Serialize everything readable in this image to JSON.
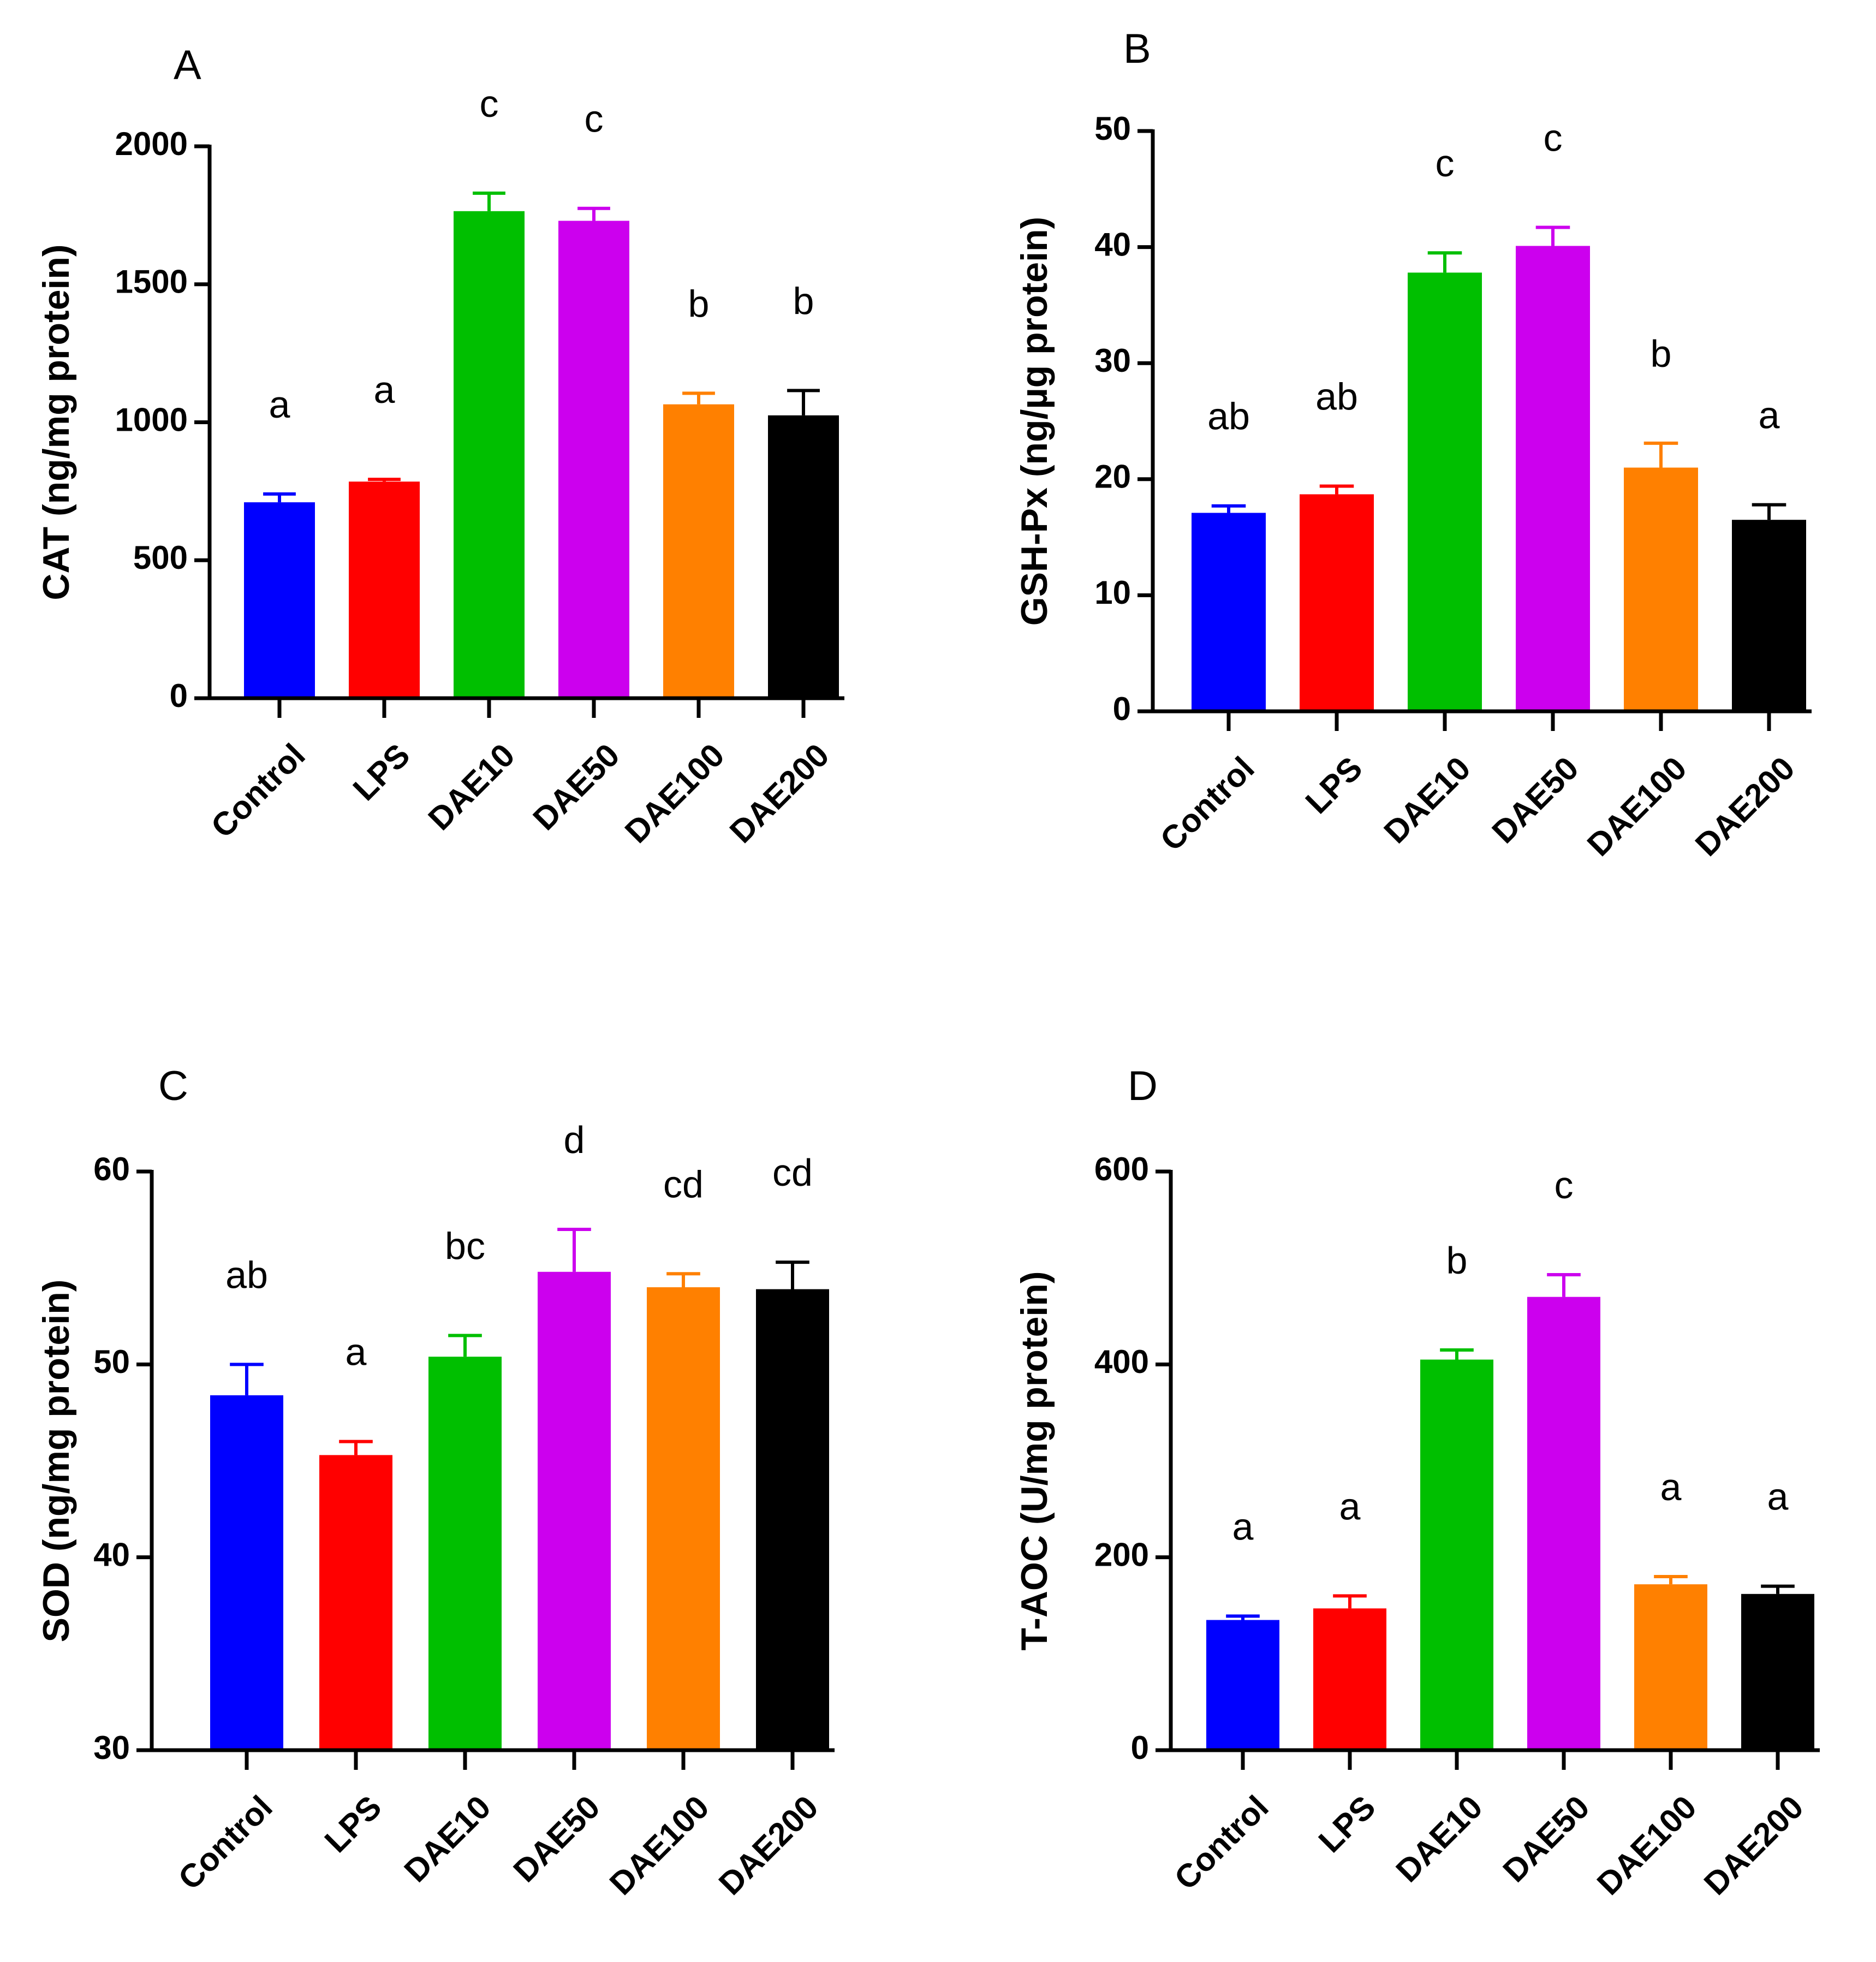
{
  "colors": {
    "Control": "#0000ff",
    "LPS": "#ff0000",
    "DAE10": "#00bf00",
    "DAE50": "#cc00ee",
    "DAE100": "#ff8000",
    "DAE200": "#000000"
  },
  "chart_data": [
    {
      "type": "bar",
      "panel": "A",
      "categories": [
        "Control",
        "LPS",
        "DAE10",
        "DAE50",
        "DAE100",
        "DAE200"
      ],
      "values": [
        710,
        785,
        1765,
        1730,
        1065,
        1025
      ],
      "errors": [
        30,
        8,
        65,
        45,
        40,
        90
      ],
      "significance": [
        "a",
        "a",
        "c",
        "c",
        "b",
        "b"
      ],
      "ylabel": "CAT (ng/mg protein)",
      "ylim": [
        0,
        2000
      ],
      "yticks": [
        0,
        500,
        1000,
        1500,
        2000
      ]
    },
    {
      "type": "bar",
      "panel": "B",
      "categories": [
        "Control",
        "LPS",
        "DAE10",
        "DAE50",
        "DAE100",
        "DAE200"
      ],
      "values": [
        17.1,
        18.7,
        37.8,
        40.1,
        21.0,
        16.5
      ],
      "errors": [
        0.6,
        0.7,
        1.7,
        1.6,
        2.1,
        1.3
      ],
      "significance": [
        "ab",
        "ab",
        "c",
        "c",
        "b",
        "a"
      ],
      "ylabel": "GSH-Px (ng/µg protein)",
      "ylim": [
        0,
        50
      ],
      "yticks": [
        0,
        10,
        20,
        30,
        40,
        50
      ]
    },
    {
      "type": "bar",
      "panel": "C",
      "categories": [
        "Control",
        "LPS",
        "DAE10",
        "DAE50",
        "DAE100",
        "DAE200"
      ],
      "values": [
        48.4,
        45.3,
        50.4,
        54.8,
        54.0,
        53.9
      ],
      "errors": [
        1.6,
        0.7,
        1.1,
        2.2,
        0.7,
        1.4
      ],
      "significance": [
        "ab",
        "a",
        "bc",
        "d",
        "cd",
        "cd"
      ],
      "ylabel": "SOD (ng/mg protein)",
      "ylim": [
        30,
        60
      ],
      "yticks": [
        30,
        40,
        50,
        60
      ]
    },
    {
      "type": "bar",
      "panel": "D",
      "categories": [
        "Control",
        "LPS",
        "DAE10",
        "DAE50",
        "DAE100",
        "DAE200"
      ],
      "values": [
        135,
        147,
        405,
        470,
        172,
        162
      ],
      "errors": [
        4,
        13,
        10,
        23,
        8,
        8
      ],
      "significance": [
        "a",
        "a",
        "b",
        "c",
        "a",
        "a"
      ],
      "ylabel": "T-AOC (U/mg protein)",
      "ylim": [
        0,
        600
      ],
      "yticks": [
        0,
        200,
        400,
        600
      ]
    }
  ]
}
